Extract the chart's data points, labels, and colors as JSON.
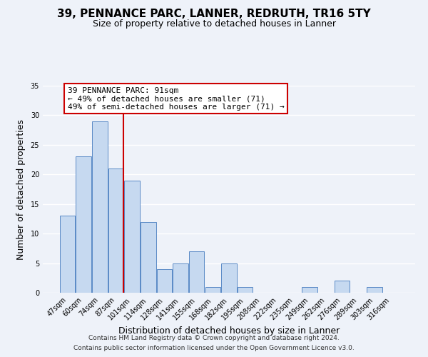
{
  "title": "39, PENNANCE PARC, LANNER, REDRUTH, TR16 5TY",
  "subtitle": "Size of property relative to detached houses in Lanner",
  "xlabel": "Distribution of detached houses by size in Lanner",
  "ylabel": "Number of detached properties",
  "bar_labels": [
    "47sqm",
    "60sqm",
    "74sqm",
    "87sqm",
    "101sqm",
    "114sqm",
    "128sqm",
    "141sqm",
    "155sqm",
    "168sqm",
    "182sqm",
    "195sqm",
    "208sqm",
    "222sqm",
    "235sqm",
    "249sqm",
    "262sqm",
    "276sqm",
    "289sqm",
    "303sqm",
    "316sqm"
  ],
  "bar_values": [
    13,
    23,
    29,
    21,
    19,
    12,
    4,
    5,
    7,
    1,
    5,
    1,
    0,
    0,
    0,
    1,
    0,
    2,
    0,
    1,
    0
  ],
  "bar_color": "#c6d9f0",
  "bar_edge_color": "#5a8ac6",
  "highlight_bar_index": 3,
  "annotation_line1": "39 PENNANCE PARC: 91sqm",
  "annotation_line2": "← 49% of detached houses are smaller (71)",
  "annotation_line3": "49% of semi-detached houses are larger (71) →",
  "annotation_box_color": "#ffffff",
  "annotation_box_edge": "#cc0000",
  "highlight_line_color": "#cc0000",
  "ylim": [
    0,
    35
  ],
  "yticks": [
    0,
    5,
    10,
    15,
    20,
    25,
    30,
    35
  ],
  "footer1": "Contains HM Land Registry data © Crown copyright and database right 2024.",
  "footer2": "Contains public sector information licensed under the Open Government Licence v3.0.",
  "background_color": "#eef2f9",
  "grid_color": "#ffffff",
  "title_fontsize": 11,
  "subtitle_fontsize": 9,
  "axis_label_fontsize": 9,
  "tick_fontsize": 7,
  "footer_fontsize": 6.5,
  "annotation_fontsize": 8
}
